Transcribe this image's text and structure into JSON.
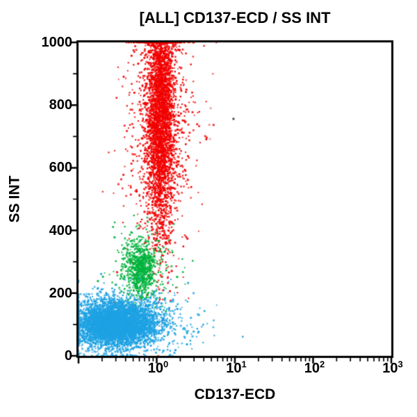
{
  "chart_data": {
    "type": "scatter",
    "title": "[ALL] CD137-ECD / SS INT",
    "xlabel": "CD137-ECD",
    "ylabel": "SS INT",
    "x_scale": "log",
    "x_range": [
      0.1,
      1000
    ],
    "y_scale": "linear",
    "y_range": [
      0,
      1000
    ],
    "x_tick_labels": [
      {
        "base": "10",
        "exp": "0",
        "value": 1
      },
      {
        "base": "10",
        "exp": "1",
        "value": 10
      },
      {
        "base": "10",
        "exp": "2",
        "value": 100
      },
      {
        "base": "10",
        "exp": "3",
        "value": 1000
      }
    ],
    "y_ticks": [
      0,
      200,
      400,
      600,
      800,
      1000
    ],
    "y_minor_ticks": [
      100,
      300,
      500,
      700,
      900
    ],
    "axis_color": "#000000",
    "background_color": "#ffffff",
    "populations": [
      {
        "name": "granulocytes-core",
        "color": "#f20000",
        "n": 3200,
        "x_log_mean": 0.05,
        "x_log_sd": 0.085,
        "y_mean": 780,
        "y_sd": 195
      },
      {
        "name": "granulocytes-halo",
        "color": "#f20000",
        "n": 1000,
        "x_log_mean": 0.04,
        "x_log_sd": 0.22,
        "y_mean": 730,
        "y_sd": 215
      },
      {
        "name": "monocytes-core",
        "color": "#00b33c",
        "n": 620,
        "x_log_mean": -0.2,
        "x_log_sd": 0.09,
        "y_mean": 275,
        "y_sd": 42
      },
      {
        "name": "monocytes-halo",
        "color": "#00b33c",
        "n": 260,
        "x_log_mean": -0.18,
        "x_log_sd": 0.2,
        "y_mean": 272,
        "y_sd": 65
      },
      {
        "name": "lymphocytes-core",
        "color": "#1ea2e4",
        "n": 4500,
        "x_log_mean": -0.52,
        "x_log_sd": 0.26,
        "y_mean": 102,
        "y_sd": 36
      },
      {
        "name": "lymphocytes-halo",
        "color": "#1ea2e4",
        "n": 700,
        "x_log_mean": -0.42,
        "x_log_sd": 0.45,
        "y_mean": 105,
        "y_sd": 52
      }
    ],
    "outliers": [
      {
        "x": 9.6,
        "y": 756,
        "color": "#4a4a4a"
      },
      {
        "x": 4.9,
        "y": 790,
        "color": "#f2a9a9"
      },
      {
        "x": 4.7,
        "y": 737,
        "color": "#eb9c9c"
      },
      {
        "x": 4.8,
        "y": 692,
        "color": "#f3b3b3"
      }
    ]
  }
}
